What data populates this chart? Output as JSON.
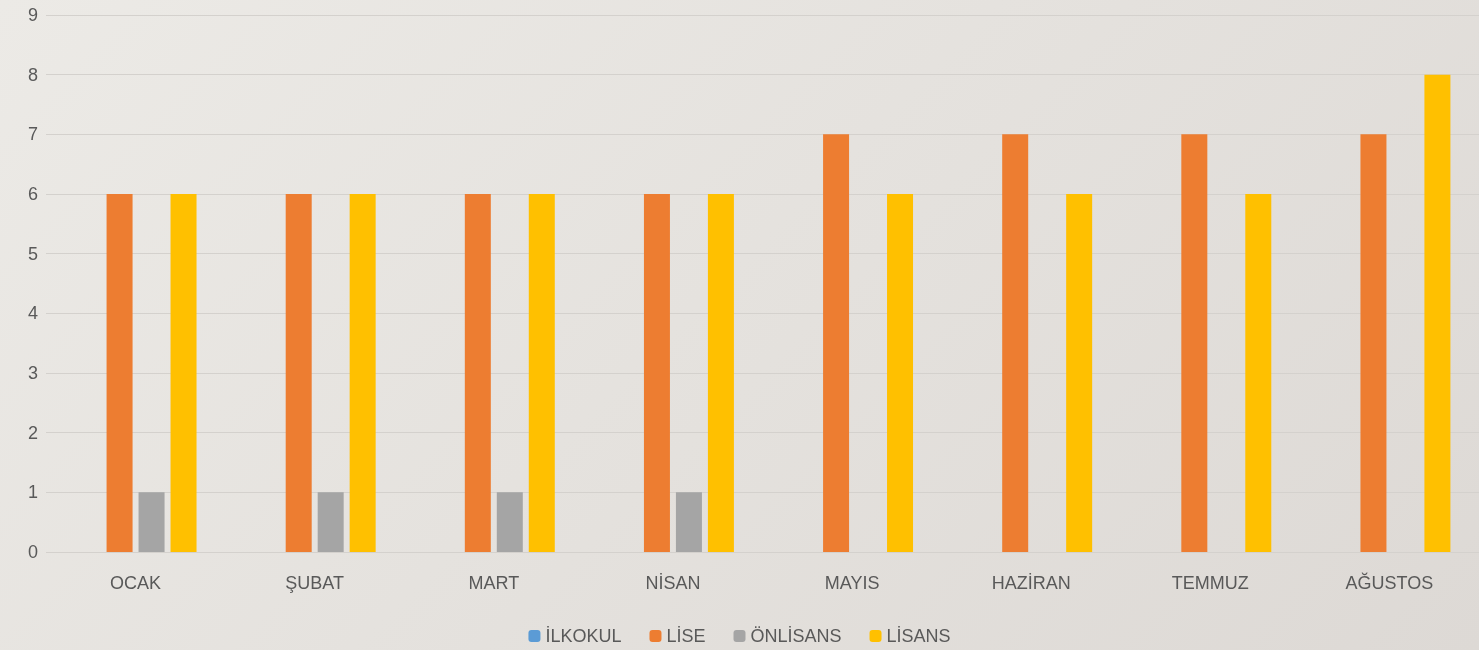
{
  "chart_data": {
    "type": "bar",
    "categories": [
      "OCAK",
      "ŞUBAT",
      "MART",
      "NİSAN",
      "MAYIS",
      "HAZİRAN",
      "TEMMUZ",
      "AĞUSTOS"
    ],
    "series": [
      {
        "name": "İLKOKUL",
        "color": "#5b9bd5",
        "values": [
          0,
          0,
          0,
          0,
          0,
          0,
          0,
          0
        ]
      },
      {
        "name": "LİSE",
        "color": "#ed7d31",
        "values": [
          6,
          6,
          6,
          6,
          7,
          7,
          7,
          7
        ]
      },
      {
        "name": "ÖNLİSANS",
        "color": "#a5a5a5",
        "values": [
          1,
          1,
          1,
          1,
          0,
          0,
          0,
          0
        ]
      },
      {
        "name": "LİSANS",
        "color": "#ffc000",
        "values": [
          6,
          6,
          6,
          6,
          6,
          6,
          6,
          8
        ]
      }
    ],
    "ylim": [
      0,
      9
    ],
    "yticks": [
      0,
      1,
      2,
      3,
      4,
      5,
      6,
      7,
      8,
      9
    ],
    "grid": "y",
    "legend": "bottom"
  }
}
